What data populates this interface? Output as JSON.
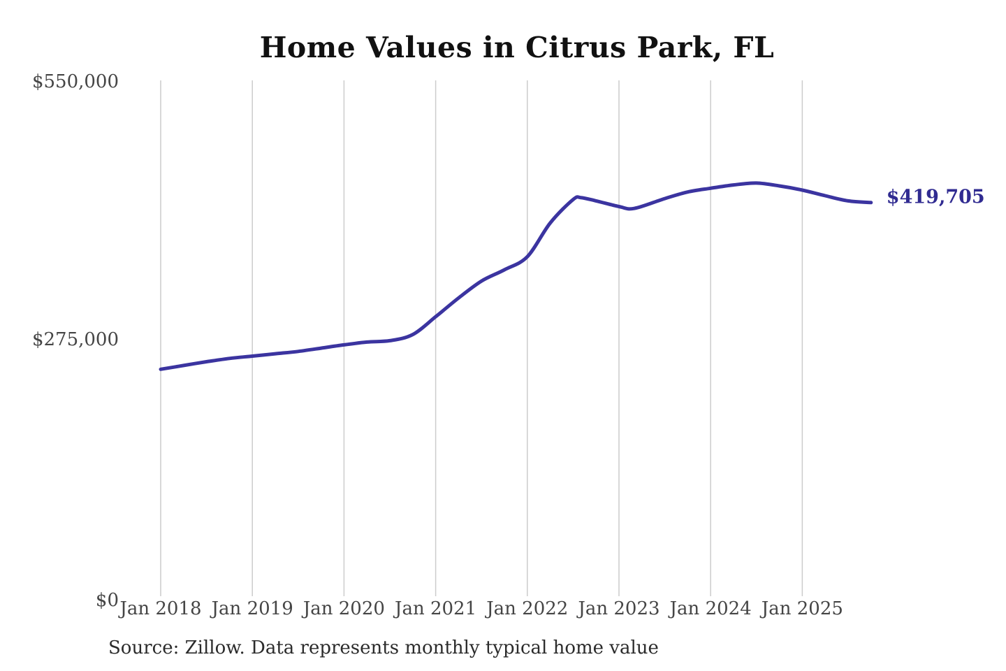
{
  "title": "Home Values in Citrus Park, FL",
  "source_note": "Source: Zillow. Data represents monthly typical home value",
  "latest_value_label": "$419,705",
  "colors": {
    "line": "#3b34a0",
    "latest_label": "#302b91",
    "gridline": "#cccccc",
    "title_text": "#111111",
    "tick_text": "#454545",
    "source_text": "#2b2b2b",
    "background": "#ffffff"
  },
  "y_axis": {
    "min": 0,
    "max": 550000,
    "ticks": [
      {
        "label": "$550,000",
        "value": 550000
      },
      {
        "label": "$275,000",
        "value": 275000
      },
      {
        "label": "$0",
        "value": 0
      }
    ]
  },
  "x_axis": {
    "labels": [
      "Jan 2018",
      "Jan 2019",
      "Jan 2020",
      "Jan 2021",
      "Jan 2022",
      "Jan 2023",
      "Jan 2024",
      "Jan 2025"
    ]
  },
  "chart_data": {
    "type": "line",
    "title": "Home Values in Citrus Park, FL",
    "xlabel": "",
    "ylabel": "",
    "ylim": [
      0,
      550000
    ],
    "x_range": [
      "2018-01",
      "2025-10"
    ],
    "grid": "vertical-yearly-only",
    "legend": "none",
    "series": [
      {
        "name": "Monthly typical home value",
        "points": [
          [
            "2018-01",
            242000
          ],
          [
            "2018-04",
            246000
          ],
          [
            "2018-07",
            250000
          ],
          [
            "2018-10",
            253500
          ],
          [
            "2019-01",
            256000
          ],
          [
            "2019-04",
            258500
          ],
          [
            "2019-07",
            261000
          ],
          [
            "2019-10",
            264500
          ],
          [
            "2020-01",
            268000
          ],
          [
            "2020-04",
            271000
          ],
          [
            "2020-07",
            272500
          ],
          [
            "2020-10",
            279000
          ],
          [
            "2021-01",
            298000
          ],
          [
            "2021-04",
            318000
          ],
          [
            "2021-07",
            336000
          ],
          [
            "2021-10",
            348000
          ],
          [
            "2022-01",
            362000
          ],
          [
            "2022-04",
            398000
          ],
          [
            "2022-07",
            423000
          ],
          [
            "2022-08",
            425000
          ],
          [
            "2022-10",
            421500
          ],
          [
            "2023-01",
            415500
          ],
          [
            "2023-03",
            413500
          ],
          [
            "2023-07",
            424000
          ],
          [
            "2023-10",
            431000
          ],
          [
            "2024-01",
            435000
          ],
          [
            "2024-04",
            438500
          ],
          [
            "2024-07",
            440500
          ],
          [
            "2024-10",
            437500
          ],
          [
            "2025-01",
            433000
          ],
          [
            "2025-04",
            427000
          ],
          [
            "2025-07",
            421500
          ],
          [
            "2025-10",
            419705
          ]
        ]
      }
    ],
    "latest": {
      "date": "2025-10",
      "value": 419705,
      "label": "$419,705"
    }
  }
}
